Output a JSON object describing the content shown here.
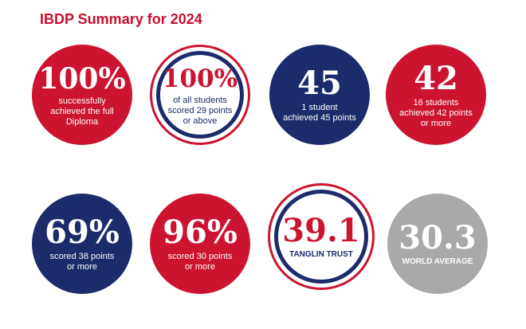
{
  "title": "IBDP Summary for 2024",
  "colors": {
    "red": "#cc1430",
    "navy": "#1b2b6b",
    "grey": "#a9a9a9",
    "title": "#c8102e"
  },
  "stats": [
    {
      "value": "100%",
      "text": "successfully achieved the full Diploma"
    },
    {
      "value": "100%",
      "text": "of all students scored 29 points or above"
    },
    {
      "value": "45",
      "text": "1 student achieved 45 points"
    },
    {
      "value": "42",
      "text": "16 students achieved 42 points or more"
    },
    {
      "value": "69%",
      "text": "scored 38 points or more"
    },
    {
      "value": "96%",
      "text": "scored 30 points or more"
    },
    {
      "value": "39.1",
      "text": "TANGLIN TRUST"
    },
    {
      "value": "30.3",
      "text": "WORLD AVERAGE"
    }
  ]
}
